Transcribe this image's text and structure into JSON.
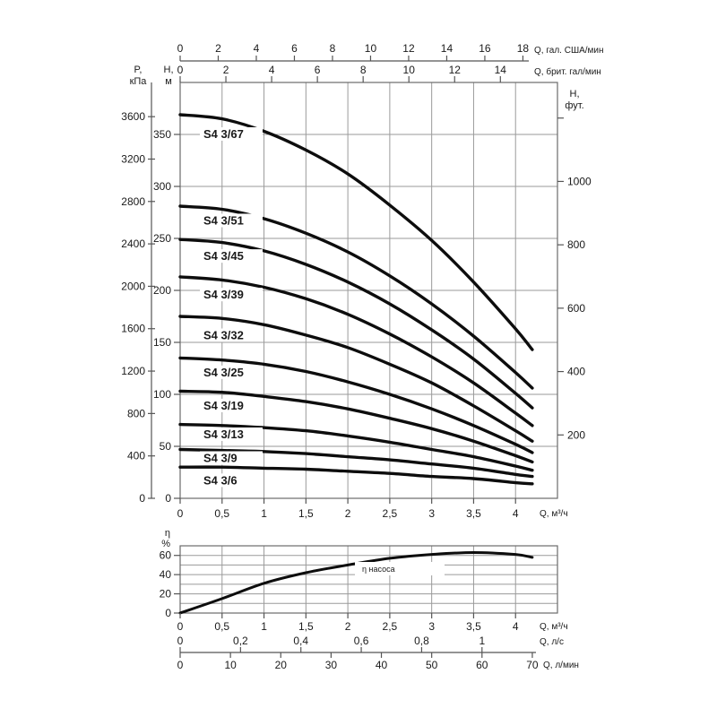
{
  "page": {
    "background": "#ffffff"
  },
  "colors": {
    "curve": "#0d0d0d",
    "grid": "#9a9a9a",
    "border": "#6b6b6b",
    "axis": "#555555",
    "text": "#1a1a1a",
    "label_bg": "#ffffff"
  },
  "chart_data": [
    {
      "id": "head_chart",
      "type": "line",
      "title": "",
      "x": {
        "unit": "Q, м³/ч",
        "lim": [
          0,
          4.5
        ],
        "ticks": [
          0,
          0.5,
          1,
          1.5,
          2,
          2.5,
          3,
          3.5,
          4
        ],
        "tick_labels": [
          "0",
          "0,5",
          "1",
          "1,5",
          "2",
          "2,5",
          "3",
          "3,5",
          "4"
        ],
        "grid": true
      },
      "y_m": {
        "unit_line1": "H,",
        "unit_line2": "м",
        "lim": [
          0,
          400
        ],
        "ticks": [
          0,
          50,
          100,
          150,
          200,
          250,
          300,
          350
        ],
        "grid": true
      },
      "y_kpa": {
        "unit_line1": "P,",
        "unit_line2": "кПа",
        "ticks": [
          0,
          400,
          800,
          1200,
          1600,
          2000,
          2400,
          2800,
          3200,
          3600
        ],
        "kpa_per_m": 9.80665
      },
      "y_ft": {
        "unit_line1": "H,",
        "unit_line2": "фут.",
        "ticks": [
          200,
          400,
          600,
          800,
          1000,
          1200
        ],
        "labeled_ticks": [
          200,
          400,
          600,
          800,
          1000
        ],
        "m_per_ft": 0.3048
      },
      "x_usgal": {
        "unit": "Q, гал. США/мин",
        "ticks": [
          0,
          2,
          4,
          6,
          8,
          10,
          12,
          14,
          16,
          18
        ],
        "m3h_per_unit": 0.2271
      },
      "x_ukgal": {
        "unit": "Q, брит. гал/мин",
        "ticks": [
          0,
          2,
          4,
          6,
          8,
          10,
          12,
          14
        ],
        "m3h_per_unit": 0.2728
      },
      "q_m3h": [
        0,
        0.5,
        1,
        1.5,
        2,
        2.5,
        3,
        3.5,
        4,
        4.2
      ],
      "series": [
        {
          "label": "S4 3/67",
          "head_m": [
            369,
            365,
            353,
            335,
            312,
            282,
            248,
            208,
            163,
            143
          ]
        },
        {
          "label": "S4 3/51",
          "head_m": [
            281,
            278,
            269,
            255,
            237,
            214,
            187,
            156,
            121,
            106
          ]
        },
        {
          "label": "S4 3/45",
          "head_m": [
            249,
            246,
            238,
            225,
            208,
            187,
            162,
            134,
            101,
            87
          ]
        },
        {
          "label": "S4 3/39",
          "head_m": [
            213,
            210,
            203,
            192,
            177,
            158,
            136,
            111,
            82,
            70
          ]
        },
        {
          "label": "S4 3/32",
          "head_m": [
            175,
            173,
            167,
            157,
            145,
            129,
            111,
            89,
            65,
            55
          ]
        },
        {
          "label": "S4 3/25",
          "head_m": [
            135,
            133,
            129,
            122,
            112,
            100,
            86,
            70,
            52,
            44
          ]
        },
        {
          "label": "S4 3/19",
          "head_m": [
            103,
            102,
            98,
            93,
            86,
            77,
            67,
            55,
            41,
            35
          ]
        },
        {
          "label": "S4 3/13",
          "head_m": [
            71,
            70,
            68,
            65,
            60,
            54,
            47,
            40,
            31,
            27
          ]
        },
        {
          "label": "S4 3/9",
          "head_m": [
            47,
            46,
            45,
            43,
            40,
            37,
            33,
            29,
            23,
            21
          ]
        },
        {
          "label": "S4 3/6",
          "head_m": [
            30,
            30,
            29,
            28,
            26,
            24,
            21,
            19,
            15,
            14
          ]
        }
      ]
    },
    {
      "id": "efficiency_chart",
      "type": "line",
      "curve_label": "η насоса",
      "y": {
        "unit_line1": "η",
        "unit_line2": "%",
        "lim": [
          0,
          70
        ],
        "ticks": [
          0,
          20,
          40,
          60
        ],
        "grid_step": 10
      },
      "x": {
        "unit": "Q, м³/ч",
        "lim": [
          0,
          4.5
        ],
        "ticks": [
          0,
          0.5,
          1,
          1.5,
          2,
          2.5,
          3,
          3.5,
          4
        ],
        "tick_labels": [
          "0",
          "0,5",
          "1",
          "1,5",
          "2",
          "2,5",
          "3",
          "3,5",
          "4"
        ]
      },
      "x_lps": {
        "unit": "Q, л/с",
        "ticks": [
          0,
          0.2,
          0.4,
          0.6,
          0.8,
          1
        ],
        "tick_labels": [
          "0",
          "0,2",
          "0,4",
          "0,6",
          "0,8",
          "1"
        ],
        "m3h_per_unit": 3.6
      },
      "x_lpm": {
        "unit": "Q, л/мин",
        "ticks": [
          0,
          10,
          20,
          30,
          40,
          50,
          60,
          70
        ],
        "m3h_per_unit": 0.06
      },
      "q_m3h": [
        0,
        0.5,
        1,
        1.5,
        2,
        2.5,
        3,
        3.5,
        4,
        4.2
      ],
      "eta_pct": [
        0,
        15,
        31,
        42,
        50,
        57,
        61,
        63,
        61,
        58
      ]
    }
  ]
}
